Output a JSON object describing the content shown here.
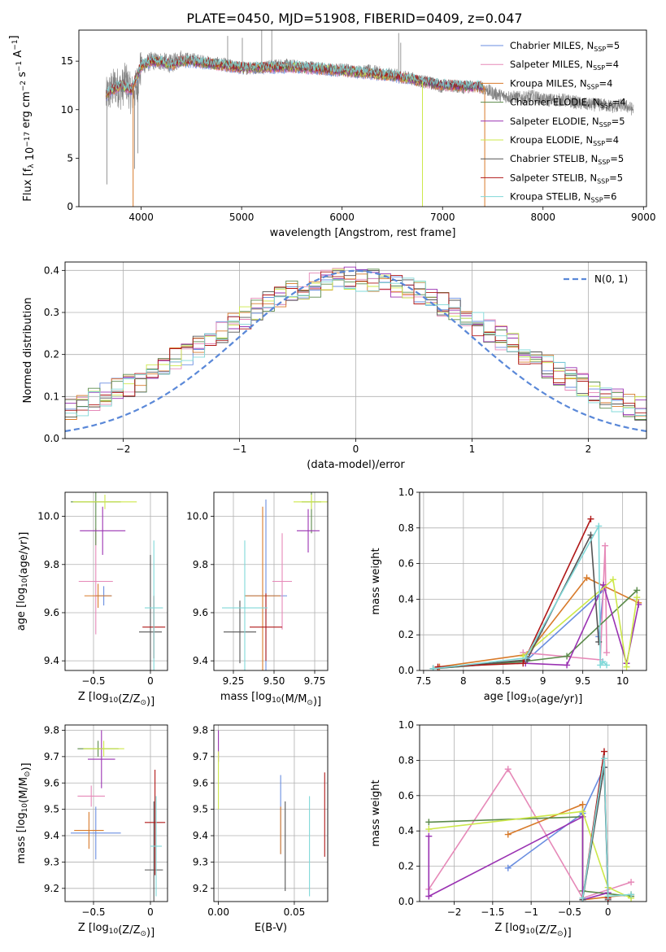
{
  "figure_title": "PLATE=0450, MJD=51908, FIBERID=0409, z=0.047",
  "model_colors": [
    "#6a8ee0",
    "#e689b8",
    "#d87a2a",
    "#5b8a4a",
    "#9a32b2",
    "#cde84a",
    "#555555",
    "#b01818",
    "#80d8d8"
  ],
  "chart_data": [
    {
      "id": "spectrum",
      "type": "line",
      "title": "PLATE=0450, MJD=51908, FIBERID=0409, z=0.047",
      "xlabel": "wavelength [Angstrom, rest frame]",
      "ylabel": "Flux [f_λ 10^-17 erg cm^-2 s^-1 A^-1]",
      "xlim": [
        3380,
        9030
      ],
      "ylim": [
        0,
        18.2
      ],
      "xticks": [
        4000,
        5000,
        6000,
        7000,
        8000,
        9000
      ],
      "yticks": [
        0,
        5,
        10,
        15
      ],
      "grid": false,
      "legend_position": "top-right",
      "legend": [
        {
          "base": "Chabrier MILES, N",
          "sub": "SSP",
          "tail": "=5",
          "color": "#6a8ee0"
        },
        {
          "base": "Salpeter MILES, N",
          "sub": "SSP",
          "tail": "=4",
          "color": "#e689b8"
        },
        {
          "base": "Kroupa MILES, N",
          "sub": "SSP",
          "tail": "=4",
          "color": "#d87a2a"
        },
        {
          "base": "Chabrier ELODIE, N",
          "sub": "SSP",
          "tail": "=4",
          "color": "#5b8a4a"
        },
        {
          "base": "Salpeter ELODIE, N",
          "sub": "SSP",
          "tail": "=5",
          "color": "#9a32b2"
        },
        {
          "base": "Kroupa ELODIE, N",
          "sub": "SSP",
          "tail": "=4",
          "color": "#cde84a"
        },
        {
          "base": "Chabrier STELIB, N",
          "sub": "SSP",
          "tail": "=5",
          "color": "#555555"
        },
        {
          "base": "Salpeter STELIB, N",
          "sub": "SSP",
          "tail": "=5",
          "color": "#b01818"
        },
        {
          "base": "Kroupa STELIB, N",
          "sub": "SSP",
          "tail": "=6",
          "color": "#80d8d8"
        }
      ],
      "observed": {
        "color": "#808080",
        "x": [
          3650,
          3700,
          3750,
          3800,
          3850,
          3900,
          3950,
          4000,
          4100,
          4200,
          4300,
          4400,
          4500,
          4600,
          4700,
          4800,
          4900,
          5000,
          5100,
          5200,
          5300,
          5400,
          5500,
          5600,
          5700,
          5800,
          5900,
          6000,
          6100,
          6200,
          6300,
          6400,
          6500,
          6600,
          6700,
          6800,
          6900,
          7000,
          7100,
          7200,
          7300,
          7400,
          7500,
          7600,
          7700,
          7800,
          7900,
          8000,
          8100,
          8200,
          8300,
          8400,
          8500,
          8600,
          8700,
          8800,
          8900
        ],
        "y": [
          11.2,
          12.0,
          12.5,
          12.0,
          13.0,
          11.5,
          12.2,
          14.5,
          15.0,
          15.0,
          14.7,
          15.3,
          15.2,
          15.0,
          14.8,
          14.7,
          14.5,
          14.3,
          14.3,
          14.4,
          14.5,
          14.6,
          14.5,
          14.4,
          14.4,
          14.2,
          14.0,
          14.2,
          14.0,
          13.9,
          14.0,
          13.7,
          13.6,
          13.4,
          13.2,
          12.9,
          12.7,
          12.4,
          12.5,
          12.3,
          12.4,
          12.3,
          11.7,
          11.4,
          11.3,
          11.2,
          11.4,
          11.0,
          11.0,
          11.0,
          10.8,
          10.6,
          10.5,
          10.5,
          10.3,
          10.5,
          10.0
        ]
      },
      "model": {
        "x": [
          3650,
          3700,
          3800,
          3900,
          4000,
          4100,
          4200,
          4300,
          4400,
          4500,
          4700,
          5000,
          5500,
          6000,
          6500,
          7000,
          7400
        ],
        "y": [
          11.5,
          12.0,
          12.5,
          12.0,
          14.5,
          15.0,
          14.9,
          14.6,
          15.0,
          15.0,
          14.7,
          14.3,
          14.4,
          14.0,
          13.5,
          12.5,
          12.3
        ]
      },
      "line_features": [
        {
          "x": 3660,
          "y": 2.3
        },
        {
          "x": 3934,
          "y": 3.9
        },
        {
          "x": 3968,
          "y": 5.5
        },
        {
          "x": 4861,
          "y": 17.6
        },
        {
          "x": 5007,
          "y": 17.4
        },
        {
          "x": 5200,
          "y": 18.2
        },
        {
          "x": 5300,
          "y": 18.2
        },
        {
          "x": 6563,
          "y": 17.9
        },
        {
          "x": 6584,
          "y": 16.9
        }
      ],
      "model_dropouts": [
        {
          "x": 3920,
          "color": "#d87a2a"
        },
        {
          "x": 6800,
          "color": "#cde84a"
        },
        {
          "x": 7420,
          "color": "#d87a2a"
        }
      ]
    },
    {
      "id": "residuals",
      "type": "histogram",
      "xlabel": "(data-model)/error",
      "ylabel": "Normed distribution",
      "xlim": [
        -2.5,
        2.5
      ],
      "ylim": [
        0,
        0.42
      ],
      "xticks": [
        -2,
        -1,
        0,
        1,
        2
      ],
      "yticks": [
        0.0,
        0.1,
        0.2,
        0.3,
        0.4
      ],
      "grid": true,
      "legend_position": "top-right",
      "legend_label": "N(0, 1)",
      "gaussian": {
        "mean": 0,
        "sigma": 1,
        "color": "#5a88d8"
      },
      "bin_width": 0.1,
      "x_start": -2.5
    },
    {
      "id": "z-age",
      "type": "errorbar",
      "xlabel": "Z [log10(Z/Z_sun)]",
      "ylabel": "age [log10(age/yr)]",
      "xlim": [
        -0.75,
        0.15
      ],
      "ylim": [
        9.36,
        10.1
      ],
      "xticks": [
        -0.5,
        0.0
      ],
      "yticks": [
        9.4,
        9.6,
        9.8,
        10.0
      ],
      "grid": true,
      "points": [
        {
          "x": -0.41,
          "xerr": 0.07,
          "y": 9.67,
          "yerr": 0.04,
          "color": "#6a8ee0"
        },
        {
          "x": -0.48,
          "xerr": 0.15,
          "y": 9.73,
          "yerr": 0.22,
          "color": "#e689b8"
        },
        {
          "x": -0.46,
          "xerr": 0.12,
          "y": 9.67,
          "yerr": 0.05,
          "color": "#d87a2a"
        },
        {
          "x": -0.48,
          "xerr": 0.22,
          "y": 10.06,
          "yerr": 0.18,
          "color": "#5b8a4a"
        },
        {
          "x": -0.42,
          "xerr": 0.2,
          "y": 9.94,
          "yerr": 0.1,
          "color": "#9a32b2"
        },
        {
          "x": -0.4,
          "xerr": 0.28,
          "y": 10.06,
          "yerr": 0.03,
          "color": "#cde84a"
        },
        {
          "x": 0.0,
          "xerr": 0.1,
          "y": 9.52,
          "yerr": 0.32,
          "color": "#555555"
        },
        {
          "x": 0.03,
          "xerr": 0.1,
          "y": 9.54,
          "yerr": 0.13,
          "color": "#b01818"
        },
        {
          "x": 0.03,
          "xerr": 0.08,
          "y": 9.62,
          "yerr": 0.28,
          "color": "#80d8d8"
        }
      ]
    },
    {
      "id": "mass-age",
      "type": "errorbar",
      "xlabel": "mass [log10(M/M_sun)]",
      "ylabel": "",
      "xlim": [
        9.13,
        9.83
      ],
      "ylim": [
        9.36,
        10.1
      ],
      "xticks": [
        9.25,
        9.5,
        9.75
      ],
      "xticklabels": [
        "9.25",
        "9.50",
        "9.75"
      ],
      "yticks": [
        9.4,
        9.6,
        9.8,
        10.0
      ],
      "grid": true,
      "points": [
        {
          "x": 9.45,
          "xerr": 0.13,
          "y": 9.67,
          "yerr": 0.4,
          "color": "#6a8ee0"
        },
        {
          "x": 9.55,
          "xerr": 0.06,
          "y": 9.73,
          "yerr": 0.2,
          "color": "#e689b8"
        },
        {
          "x": 9.43,
          "xerr": 0.11,
          "y": 9.67,
          "yerr": 0.37,
          "color": "#d87a2a"
        },
        {
          "x": 9.73,
          "xerr": 0.06,
          "y": 10.06,
          "yerr": 0.13,
          "color": "#5b8a4a"
        },
        {
          "x": 9.71,
          "xerr": 0.07,
          "y": 9.94,
          "yerr": 0.09,
          "color": "#9a32b2"
        },
        {
          "x": 9.73,
          "xerr": 0.11,
          "y": 10.06,
          "yerr": 0.03,
          "color": "#cde84a"
        },
        {
          "x": 9.29,
          "xerr": 0.1,
          "y": 9.52,
          "yerr": 0.13,
          "color": "#555555"
        },
        {
          "x": 9.45,
          "xerr": 0.1,
          "y": 9.54,
          "yerr": 0.14,
          "color": "#b01818"
        },
        {
          "x": 9.32,
          "xerr": 0.14,
          "y": 9.62,
          "yerr": 0.28,
          "color": "#80d8d8"
        }
      ]
    },
    {
      "id": "age-weight",
      "type": "line",
      "xlabel": "age [log10(age/yr)]",
      "ylabel": "mass weight",
      "xlim": [
        7.45,
        10.3
      ],
      "ylim": [
        0,
        1.0
      ],
      "xticks": [
        7.5,
        8.0,
        8.5,
        9.0,
        9.5,
        10.0
      ],
      "yticks": [
        0.0,
        0.2,
        0.4,
        0.6,
        0.8,
        1.0
      ],
      "grid": true,
      "marker": "+",
      "series": [
        {
          "color": "#6a8ee0",
          "x": [
            7.62,
            8.78,
            9.76,
            9.7
          ],
          "y": [
            0.01,
            0.05,
            0.45,
            0.19
          ]
        },
        {
          "color": "#e689b8",
          "x": [
            8.75,
            9.72,
            9.78,
            9.8
          ],
          "y": [
            0.1,
            0.06,
            0.7,
            0.1
          ]
        },
        {
          "color": "#d87a2a",
          "x": [
            7.7,
            8.8,
            9.55,
            10.2
          ],
          "y": [
            0.02,
            0.09,
            0.52,
            0.38
          ]
        },
        {
          "color": "#5b8a4a",
          "x": [
            7.62,
            8.75,
            9.3,
            10.18
          ],
          "y": [
            0.01,
            0.05,
            0.08,
            0.45
          ]
        },
        {
          "color": "#9a32b2",
          "x": [
            8.78,
            9.3,
            9.76,
            10.05,
            10.2
          ],
          "y": [
            0.04,
            0.03,
            0.48,
            0.04,
            0.37
          ]
        },
        {
          "color": "#cde84a",
          "x": [
            8.75,
            9.88,
            10.05,
            10.18
          ],
          "y": [
            0.08,
            0.51,
            0.02,
            0.41
          ]
        },
        {
          "color": "#555555",
          "x": [
            7.62,
            8.8,
            9.6,
            9.7
          ],
          "y": [
            0.01,
            0.06,
            0.76,
            0.16
          ]
        },
        {
          "color": "#b01818",
          "x": [
            7.68,
            8.75,
            9.6
          ],
          "y": [
            0.02,
            0.04,
            0.85
          ]
        },
        {
          "color": "#80d8d8",
          "x": [
            7.62,
            8.78,
            9.7,
            9.72,
            9.75,
            9.8
          ],
          "y": [
            0.01,
            0.07,
            0.81,
            0.03,
            0.05,
            0.03
          ]
        }
      ]
    },
    {
      "id": "z-mass",
      "type": "errorbar",
      "xlabel": "Z [log10(Z/Z_sun)]",
      "ylabel": "mass [log10(M/M_sun)]",
      "xlim": [
        -0.75,
        0.15
      ],
      "ylim": [
        9.15,
        9.82
      ],
      "xticks": [
        -0.5,
        0.0
      ],
      "yticks": [
        9.2,
        9.3,
        9.4,
        9.5,
        9.6,
        9.7,
        9.8
      ],
      "grid": true,
      "points": [
        {
          "x": -0.48,
          "xerr": 0.22,
          "y": 9.41,
          "yerr": 0.1,
          "color": "#6a8ee0"
        },
        {
          "x": -0.52,
          "xerr": 0.12,
          "y": 9.55,
          "yerr": 0.04,
          "color": "#e689b8"
        },
        {
          "x": -0.54,
          "xerr": 0.13,
          "y": 9.42,
          "yerr": 0.07,
          "color": "#d87a2a"
        },
        {
          "x": -0.46,
          "xerr": 0.18,
          "y": 9.73,
          "yerr": 0.03,
          "color": "#5b8a4a"
        },
        {
          "x": -0.43,
          "xerr": 0.12,
          "y": 9.69,
          "yerr": 0.11,
          "color": "#9a32b2"
        },
        {
          "x": -0.41,
          "xerr": 0.18,
          "y": 9.73,
          "yerr": 0.03,
          "color": "#cde84a"
        },
        {
          "x": 0.03,
          "xerr": 0.08,
          "y": 9.27,
          "yerr": 0.26,
          "color": "#555555"
        },
        {
          "x": 0.04,
          "xerr": 0.09,
          "y": 9.45,
          "yerr": 0.2,
          "color": "#b01818"
        },
        {
          "x": 0.05,
          "xerr": 0.05,
          "y": 9.36,
          "yerr": 0.19,
          "color": "#80d8d8"
        }
      ]
    },
    {
      "id": "ebv-mass",
      "type": "errorbar",
      "xlabel": "E(B-V)",
      "ylabel": "",
      "xlim": [
        -0.003,
        0.072
      ],
      "ylim": [
        9.15,
        9.82
      ],
      "xticks": [
        0.0,
        0.05
      ],
      "xticklabels": [
        "0.00",
        "0.05"
      ],
      "yticks": [
        9.2,
        9.3,
        9.4,
        9.5,
        9.6,
        9.7,
        9.8
      ],
      "grid": true,
      "points": [
        {
          "x": 0.041,
          "xerr": 0,
          "y": 9.48,
          "yerr": 0.15,
          "color": "#6a8ee0"
        },
        {
          "x": 0.041,
          "xerr": 0,
          "y": 9.42,
          "yerr": 0.09,
          "color": "#d87a2a"
        },
        {
          "x": 0.0,
          "xerr": 0,
          "y": 9.74,
          "yerr": 0.06,
          "color": "#9a32b2"
        },
        {
          "x": 0.0,
          "xerr": 0,
          "y": 9.61,
          "yerr": 0.11,
          "color": "#cde84a"
        },
        {
          "x": 0.044,
          "xerr": 0,
          "y": 9.36,
          "yerr": 0.17,
          "color": "#555555"
        },
        {
          "x": 0.07,
          "xerr": 0,
          "y": 9.48,
          "yerr": 0.16,
          "color": "#b01818"
        },
        {
          "x": 0.06,
          "xerr": 0,
          "y": 9.36,
          "yerr": 0.19,
          "color": "#80d8d8"
        }
      ]
    },
    {
      "id": "z-weight",
      "type": "line",
      "xlabel": "Z [log10(Z/Z_sun)]",
      "ylabel": "mass weight",
      "xlim": [
        -2.45,
        0.5
      ],
      "ylim": [
        0,
        1.0
      ],
      "xticks": [
        -2.0,
        -1.5,
        -1.0,
        -0.5,
        0.0
      ],
      "yticks": [
        0.0,
        0.2,
        0.4,
        0.6,
        0.8,
        1.0
      ],
      "grid": true,
      "marker": "+",
      "series": [
        {
          "color": "#6a8ee0",
          "x": [
            -1.3,
            -0.33,
            -0.05,
            0.0
          ],
          "y": [
            0.19,
            0.5,
            0.76,
            0.05
          ]
        },
        {
          "color": "#e689b8",
          "x": [
            -2.33,
            -1.3,
            -0.33,
            0.3
          ],
          "y": [
            0.07,
            0.75,
            0.02,
            0.11
          ]
        },
        {
          "color": "#d87a2a",
          "x": [
            -1.3,
            -0.33,
            -0.33,
            0.3
          ],
          "y": [
            0.38,
            0.55,
            0.01,
            0.04
          ]
        },
        {
          "color": "#5b8a4a",
          "x": [
            -2.33,
            -0.33,
            -0.33,
            0.3
          ],
          "y": [
            0.45,
            0.48,
            0.06,
            0.03
          ]
        },
        {
          "color": "#9a32b2",
          "x": [
            -2.33,
            -2.33,
            -0.33,
            -0.33,
            0.0
          ],
          "y": [
            0.37,
            0.03,
            0.48,
            0.01,
            0.05
          ]
        },
        {
          "color": "#cde84a",
          "x": [
            -2.33,
            -0.33,
            0.0,
            0.3
          ],
          "y": [
            0.41,
            0.51,
            0.08,
            0.02
          ]
        },
        {
          "color": "#555555",
          "x": [
            -0.33,
            -0.05,
            0.0
          ],
          "y": [
            0.01,
            0.76,
            0.01
          ]
        },
        {
          "color": "#b01818",
          "x": [
            -0.33,
            -0.05,
            0.0
          ],
          "y": [
            0.02,
            0.85,
            0.02
          ]
        },
        {
          "color": "#80d8d8",
          "x": [
            -0.33,
            -0.05,
            0.0,
            0.3
          ],
          "y": [
            0.02,
            0.81,
            0.03,
            0.04
          ]
        }
      ]
    }
  ]
}
